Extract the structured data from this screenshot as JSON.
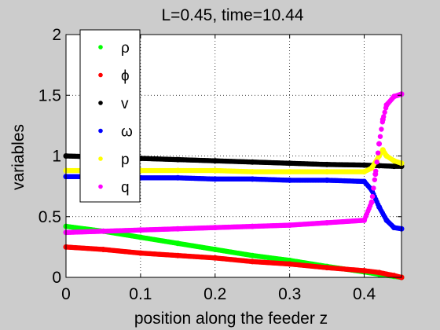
{
  "chart_data": {
    "type": "scatter",
    "title": "L=0.45, time=10.44",
    "xlabel": "position along the feeder z",
    "ylabel": "variables",
    "xlim": [
      0,
      0.45
    ],
    "ylim": [
      0,
      2
    ],
    "xticks": [
      0,
      0.1,
      0.2,
      0.3,
      0.4
    ],
    "xtick_labels": [
      "0",
      "0.1",
      "0.2",
      "0.3",
      "0.4"
    ],
    "yticks": [
      0,
      0.5,
      1,
      1.5,
      2
    ],
    "ytick_labels": [
      "0",
      "0.5",
      "1",
      "1.5",
      "2"
    ],
    "grid": true,
    "legend_position": "top-left",
    "series": [
      {
        "name": "ρ",
        "color": "#00ff00",
        "x": [
          0,
          0.05,
          0.1,
          0.15,
          0.2,
          0.25,
          0.3,
          0.35,
          0.4,
          0.42,
          0.44,
          0.45
        ],
        "y": [
          0.42,
          0.38,
          0.33,
          0.28,
          0.23,
          0.18,
          0.14,
          0.09,
          0.045,
          0.025,
          0.008,
          0.0
        ]
      },
      {
        "name": "ϕ",
        "color": "#ff0000",
        "x": [
          0,
          0.05,
          0.1,
          0.15,
          0.2,
          0.25,
          0.3,
          0.35,
          0.4,
          0.42,
          0.44,
          0.45
        ],
        "y": [
          0.25,
          0.23,
          0.2,
          0.18,
          0.16,
          0.13,
          0.11,
          0.08,
          0.055,
          0.04,
          0.015,
          0.0
        ]
      },
      {
        "name": "v",
        "color": "#000000",
        "x": [
          0,
          0.05,
          0.1,
          0.15,
          0.2,
          0.25,
          0.3,
          0.35,
          0.4,
          0.42,
          0.44,
          0.45
        ],
        "y": [
          1.0,
          0.99,
          0.98,
          0.97,
          0.96,
          0.95,
          0.94,
          0.93,
          0.925,
          0.92,
          0.915,
          0.915
        ]
      },
      {
        "name": "ω",
        "color": "#0000ff",
        "x": [
          0,
          0.05,
          0.1,
          0.15,
          0.2,
          0.25,
          0.3,
          0.35,
          0.4,
          0.41,
          0.42,
          0.43,
          0.44,
          0.45
        ],
        "y": [
          0.83,
          0.83,
          0.82,
          0.82,
          0.81,
          0.81,
          0.8,
          0.8,
          0.79,
          0.72,
          0.58,
          0.47,
          0.41,
          0.4
        ]
      },
      {
        "name": "p",
        "color": "#ffff00",
        "x": [
          0,
          0.05,
          0.1,
          0.15,
          0.2,
          0.25,
          0.3,
          0.35,
          0.4,
          0.41,
          0.42,
          0.425,
          0.43,
          0.44,
          0.45
        ],
        "y": [
          0.88,
          0.88,
          0.88,
          0.88,
          0.88,
          0.87,
          0.87,
          0.87,
          0.87,
          0.9,
          1.0,
          1.05,
          1.0,
          0.96,
          0.94
        ]
      },
      {
        "name": "q",
        "color": "#ff00ff",
        "x": [
          0,
          0.05,
          0.1,
          0.15,
          0.2,
          0.25,
          0.3,
          0.35,
          0.4,
          0.41,
          0.415,
          0.42,
          0.425,
          0.43,
          0.44,
          0.45
        ],
        "y": [
          0.37,
          0.38,
          0.39,
          0.4,
          0.41,
          0.42,
          0.43,
          0.45,
          0.47,
          0.62,
          0.85,
          1.1,
          1.3,
          1.42,
          1.49,
          1.51
        ]
      }
    ]
  }
}
